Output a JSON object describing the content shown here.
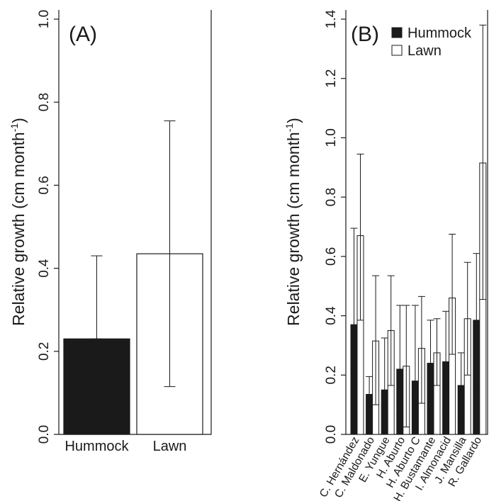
{
  "chart_data": [
    {
      "type": "bar",
      "panel_label": "(A)",
      "ylabel": "Relative growth (cm month",
      "ylabel_sup": "-1",
      "ylabel_close": ")",
      "ylim": [
        0,
        1.0
      ],
      "yticks": [
        "0.0",
        "0.2",
        "0.4",
        "0.6",
        "0.8",
        "1.0"
      ],
      "yticks_values": [
        0,
        0.2,
        0.4,
        0.6,
        0.8,
        1.0
      ],
      "categories": [
        "Hummock",
        "Lawn"
      ],
      "values": [
        0.23,
        0.435
      ],
      "error_low": [
        0.23,
        0.115
      ],
      "error_high": [
        0.43,
        0.755
      ],
      "colors": [
        "#1a1a1a",
        "#ffffff"
      ]
    },
    {
      "type": "bar",
      "panel_label": "(B)",
      "ylabel": "Relative growth (cm month",
      "ylabel_sup": "-1",
      "ylabel_close": ")",
      "ylim": [
        0,
        1.4
      ],
      "yticks": [
        "0.0",
        "0.2",
        "0.4",
        "0.6",
        "0.8",
        "1.0",
        "1.2",
        "1.4"
      ],
      "yticks_values": [
        0,
        0.2,
        0.4,
        0.6,
        0.8,
        1.0,
        1.2,
        1.4
      ],
      "legend_position": "top-right",
      "categories": [
        "C. Hernández",
        "C. Maldonado",
        "E. Yungue",
        "H. Aburto",
        "H. Aburto C",
        "H. Bustamante",
        "I. Almonacid",
        "J. Mansilla",
        "R. Gallardo"
      ],
      "series": [
        {
          "name": "Hummock",
          "color": "#1a1a1a",
          "values": [
            0.37,
            0.135,
            0.15,
            0.22,
            0.18,
            0.24,
            0.245,
            0.165,
            0.385
          ],
          "error_low": [
            0.04,
            0.07,
            0.095,
            0.065,
            0.125,
            0.11,
            0.07,
            0.055,
            0.16
          ],
          "error_high": [
            0.695,
            0.195,
            0.325,
            0.435,
            0.435,
            0.385,
            0.415,
            0.275,
            0.61
          ]
        },
        {
          "name": "Lawn",
          "color": "#ffffff",
          "values": [
            0.67,
            0.315,
            0.35,
            0.23,
            0.29,
            0.275,
            0.46,
            0.39,
            0.915
          ],
          "error_low": [
            0.385,
            0.1,
            0.165,
            0.025,
            0.105,
            0.165,
            0.27,
            0.2,
            0.455
          ],
          "error_high": [
            0.945,
            0.535,
            0.535,
            0.435,
            0.465,
            0.39,
            0.675,
            0.58,
            1.38
          ]
        }
      ]
    }
  ]
}
